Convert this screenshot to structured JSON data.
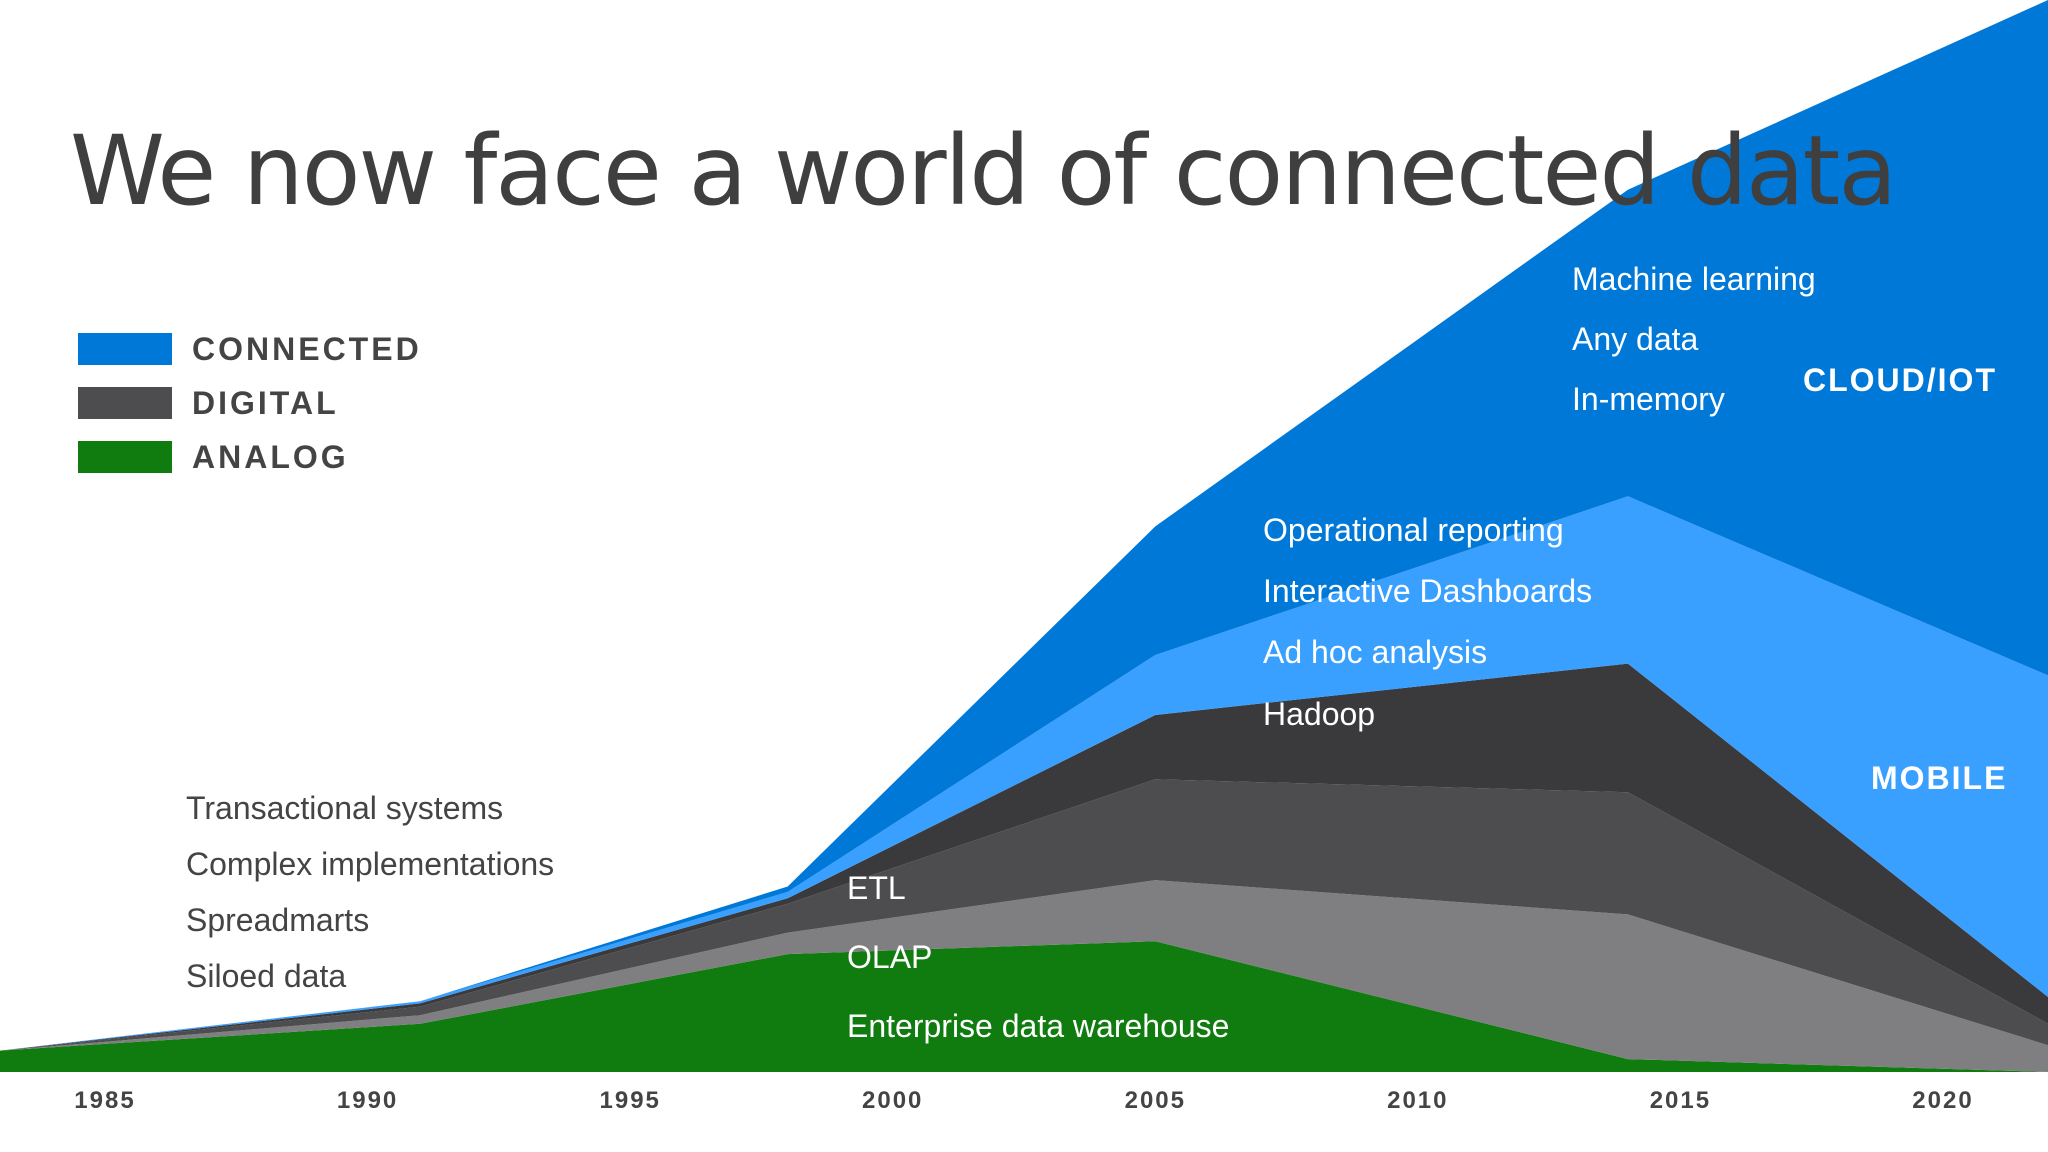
{
  "title": "We now face a world of connected data",
  "legend": [
    {
      "label": "CONNECTED",
      "color": "#0078d7"
    },
    {
      "label": "DIGITAL",
      "color": "#4d4d4f"
    },
    {
      "label": "ANALOG",
      "color": "#107c10"
    }
  ],
  "notes": {
    "analog_era": [
      "Transactional systems",
      "Complex implementations",
      "Spreadmarts",
      "Siloed data"
    ],
    "digital_era": [
      "ETL",
      "OLAP",
      "Enterprise data warehouse"
    ],
    "mobile_era": [
      "Operational reporting",
      "Interactive Dashboards",
      "Ad hoc analysis",
      "Hadoop"
    ],
    "cloud_era": [
      "Machine learning",
      "Any data",
      "In-memory"
    ]
  },
  "eras": {
    "cloud": "CLOUD/IOT",
    "mobile": "MOBILE"
  },
  "chart_data": {
    "type": "area",
    "stacked": true,
    "x": [
      1983,
      1991,
      1998,
      2005,
      2014,
      2022
    ],
    "x_ticks": [
      "1985",
      "1990",
      "1995",
      "2000",
      "2005",
      "2010",
      "2015",
      "2020"
    ],
    "xlim": [
      1983,
      2022
    ],
    "ylim": [
      0,
      100
    ],
    "series": [
      {
        "name": "ANALOG",
        "color": "#107c10",
        "values": [
          2.0,
          4.5,
          11.0,
          12.2,
          1.2,
          0.0
        ]
      },
      {
        "name": "",
        "color": "#7f7e80",
        "values": [
          0.0,
          0.8,
          2.0,
          5.7,
          13.5,
          2.5
        ]
      },
      {
        "name": "",
        "color": "#4d4d4f",
        "values": [
          0.0,
          0.8,
          2.7,
          9.4,
          11.4,
          2.0
        ]
      },
      {
        "name": "",
        "color": "#3a3a3c",
        "values": [
          0.0,
          0.3,
          0.5,
          6.0,
          12.0,
          2.5
        ]
      },
      {
        "name": "",
        "color": "#3aa0ff",
        "values": [
          0.0,
          0.2,
          0.6,
          5.6,
          15.6,
          30.0
        ]
      },
      {
        "name": "",
        "color": "#0078d7",
        "values": [
          0.0,
          0.0,
          0.5,
          12.0,
          28.6,
          63.0
        ]
      }
    ]
  }
}
